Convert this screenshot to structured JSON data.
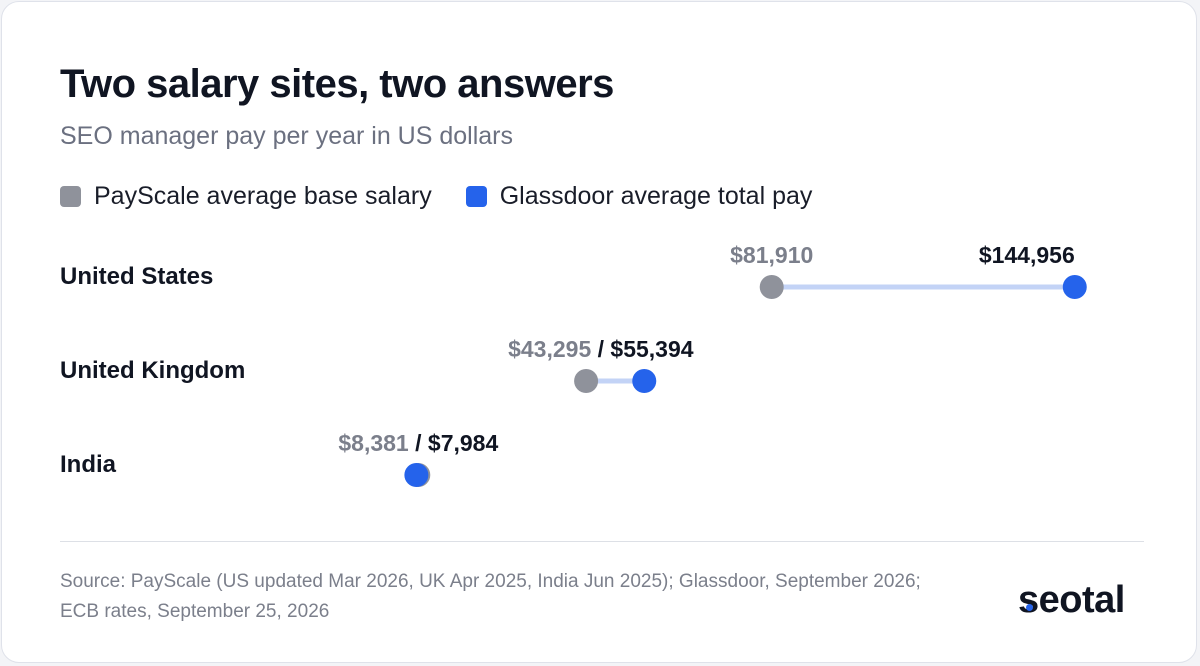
{
  "title": "Two salary sites, two answers",
  "subtitle": "SEO manager pay per year in US dollars",
  "footer": {
    "source": "Source: PayScale (US updated Mar 2026, UK Apr 2025, India Jun 2025); Glassdoor, September 2026; ECB rates, September 25, 2026",
    "brand": "seotal"
  },
  "colors": {
    "payscale": "#8f929b",
    "glassdoor": "#2563eb",
    "connector": "#c3d3f6",
    "label_dark": "#101522",
    "label_grey": "#7b7f8b"
  },
  "chart_data": {
    "type": "dumbbell",
    "title": "Two salary sites, two answers",
    "subtitle": "SEO manager pay per year in US dollars",
    "legend_placement": "top-left",
    "grid": false,
    "categories": [
      "United States",
      "United Kingdom",
      "India"
    ],
    "series": [
      {
        "name": "PayScale average base salary",
        "color": "#8f929b",
        "values": [
          81910,
          43295,
          8381
        ],
        "labels": [
          "$81,910",
          "$43,295",
          "$8,381"
        ]
      },
      {
        "name": "Glassdoor average total pay",
        "color": "#2563eb",
        "values": [
          144956,
          55394,
          7984
        ],
        "labels": [
          "$144,956",
          "$55,394",
          "$7,984"
        ]
      }
    ],
    "xlim": [
      0,
      150000
    ]
  }
}
